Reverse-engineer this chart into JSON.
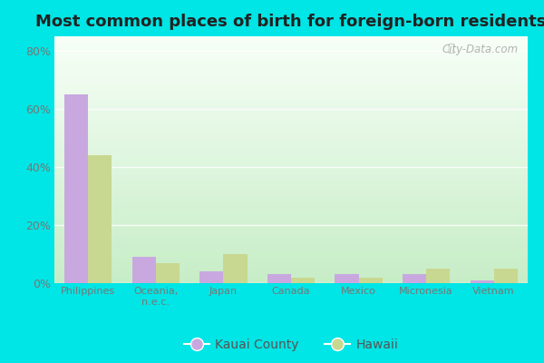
{
  "title": "Most common places of birth for foreign-born residents",
  "categories": [
    "Philippines",
    "Oceania,\nn.e.c.",
    "Japan",
    "Canada",
    "Mexico",
    "Micronesia",
    "Vietnam"
  ],
  "kauai_values": [
    65,
    9,
    4,
    3,
    3,
    3,
    1
  ],
  "hawaii_values": [
    44,
    7,
    10,
    2,
    2,
    5,
    5
  ],
  "kauai_color": "#c9a8e0",
  "hawaii_color": "#c8d890",
  "kauai_label": "Kauai County",
  "hawaii_label": "Hawaii",
  "ylim": [
    0,
    85
  ],
  "yticks": [
    0,
    20,
    40,
    60,
    80
  ],
  "ytick_labels": [
    "0%",
    "20%",
    "40%",
    "60%",
    "80%"
  ],
  "fig_bg_color": "#00e5e5",
  "bar_width": 0.35,
  "title_fontsize": 13,
  "watermark": "City-Data.com"
}
